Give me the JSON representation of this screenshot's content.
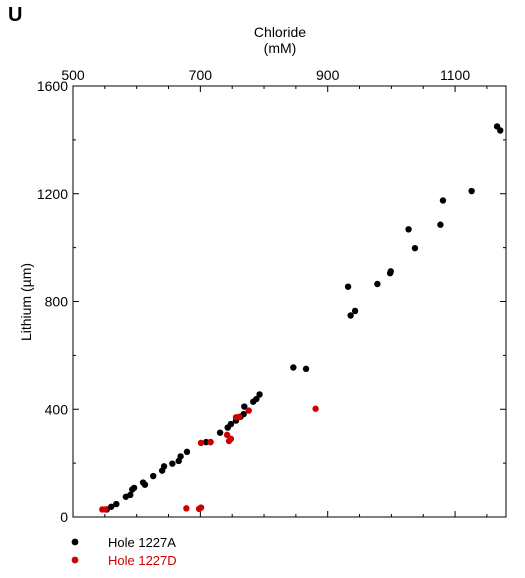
{
  "panel_label": "U",
  "chart_data": {
    "type": "scatter",
    "xlabel_line1": "Chloride",
    "xlabel_line2": "(mM)",
    "ylabel": "Lithium (µm)",
    "xlim": [
      500,
      1180
    ],
    "ylim": [
      0,
      1600
    ],
    "xticks_major": [
      500,
      700,
      900,
      1100
    ],
    "yticks_major": [
      0,
      400,
      800,
      1200,
      1600
    ],
    "xticks_minor_step": 50,
    "yticks_minor_step": 200,
    "axis_position_x": "top",
    "grid": false,
    "legend_position": "below-left",
    "series": [
      {
        "name": "Hole 1227A",
        "color": "#000000",
        "points": [
          [
            553,
            28
          ],
          [
            560,
            38
          ],
          [
            568,
            48
          ],
          [
            583,
            75
          ],
          [
            590,
            82
          ],
          [
            593,
            102
          ],
          [
            596,
            108
          ],
          [
            610,
            128
          ],
          [
            613,
            120
          ],
          [
            626,
            152
          ],
          [
            640,
            172
          ],
          [
            643,
            188
          ],
          [
            656,
            198
          ],
          [
            666,
            208
          ],
          [
            669,
            225
          ],
          [
            679,
            242
          ],
          [
            709,
            278
          ],
          [
            716,
            278
          ],
          [
            731,
            313
          ],
          [
            743,
            332
          ],
          [
            748,
            345
          ],
          [
            756,
            358
          ],
          [
            763,
            372
          ],
          [
            768,
            382
          ],
          [
            769,
            410
          ],
          [
            783,
            428
          ],
          [
            788,
            438
          ],
          [
            793,
            455
          ],
          [
            846,
            555
          ],
          [
            866,
            550
          ],
          [
            932,
            855
          ],
          [
            936,
            748
          ],
          [
            943,
            765
          ],
          [
            978,
            865
          ],
          [
            998,
            905
          ],
          [
            999,
            912
          ],
          [
            1027,
            1068
          ],
          [
            1037,
            998
          ],
          [
            1077,
            1085
          ],
          [
            1081,
            1175
          ],
          [
            1126,
            1210
          ],
          [
            1166,
            1450
          ],
          [
            1171,
            1435
          ]
        ]
      },
      {
        "name": "Hole 1227D",
        "color": "#cc0000",
        "points": [
          [
            546,
            28
          ],
          [
            551,
            28
          ],
          [
            678,
            32
          ],
          [
            698,
            30
          ],
          [
            701,
            35
          ],
          [
            701,
            275
          ],
          [
            716,
            278
          ],
          [
            742,
            305
          ],
          [
            745,
            282
          ],
          [
            748,
            290
          ],
          [
            756,
            370
          ],
          [
            761,
            372
          ],
          [
            776,
            395
          ],
          [
            881,
            402
          ]
        ]
      }
    ]
  }
}
